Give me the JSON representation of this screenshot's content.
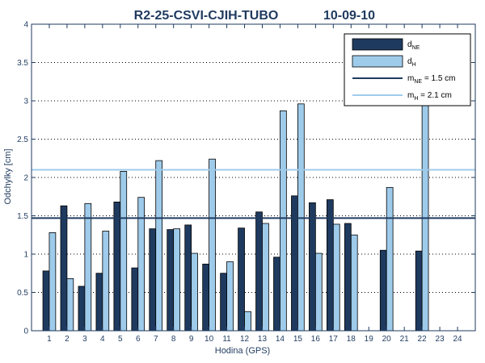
{
  "chart_data": {
    "type": "bar",
    "title_left": "R2-25-CSVI-CJIH-TUBO",
    "title_right": "10-09-10",
    "xlabel": "Hodina (GPS)",
    "ylabel": "Odchylky [cm]",
    "ylim": [
      0,
      4
    ],
    "y_ticks": [
      "0",
      "0.5",
      "1",
      "1.5",
      "2",
      "2.5",
      "3",
      "3.5",
      "4"
    ],
    "categories": [
      "1",
      "2",
      "3",
      "4",
      "5",
      "6",
      "7",
      "8",
      "9",
      "10",
      "11",
      "12",
      "13",
      "14",
      "15",
      "16",
      "17",
      "18",
      "19",
      "20",
      "21",
      "22",
      "23",
      "24"
    ],
    "grid": "horizontal dotted",
    "legend_position": "top-right",
    "series": [
      {
        "legend_main": "d",
        "legend_sub": "NE",
        "color": "#1f3a5f",
        "values": [
          0.78,
          1.63,
          0.58,
          0.75,
          1.68,
          0.82,
          1.33,
          1.32,
          1.38,
          0.87,
          0.75,
          1.34,
          1.55,
          0.96,
          1.76,
          1.67,
          1.71,
          1.4,
          null,
          1.05,
          null,
          1.04,
          null,
          null
        ]
      },
      {
        "legend_main": "d",
        "legend_sub": "H",
        "color": "#9fcbeb",
        "values": [
          1.28,
          0.68,
          1.66,
          1.3,
          2.08,
          1.74,
          2.22,
          1.33,
          1.01,
          2.24,
          0.9,
          0.25,
          1.4,
          2.87,
          2.96,
          1.01,
          1.39,
          1.25,
          null,
          1.87,
          null,
          3.0,
          null,
          null
        ]
      }
    ],
    "reference_lines": [
      {
        "legend_main": "m",
        "legend_sub": "NE",
        "legend_suffix": " = 1.5 cm",
        "value": 1.47,
        "color": "#1f3a5f"
      },
      {
        "legend_main": "m",
        "legend_sub": "H",
        "legend_suffix": " = 2.1 cm",
        "value": 2.1,
        "color": "#9fcbeb"
      }
    ]
  }
}
